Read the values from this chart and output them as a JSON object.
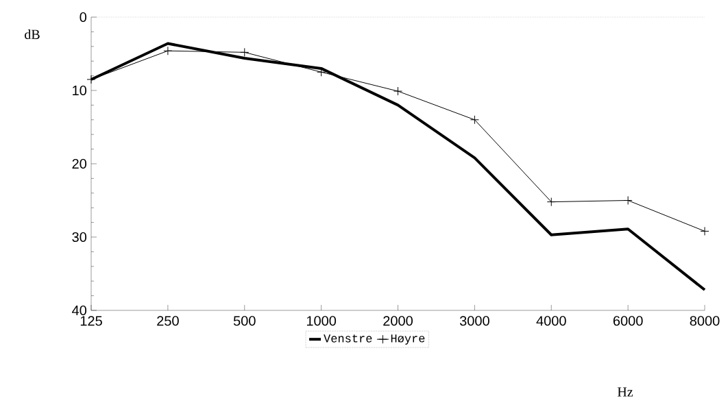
{
  "chart_data": {
    "type": "line",
    "xlabel": "Hz",
    "ylabel": "dB",
    "categories": [
      "125",
      "250",
      "500",
      "1000",
      "2000",
      "3000",
      "4000",
      "6000",
      "8000"
    ],
    "series": [
      {
        "name": "Venstre",
        "color": "#000000",
        "marker": "none",
        "values": [
          8.5,
          3.6,
          5.6,
          7,
          12,
          19.2,
          29.7,
          28.9,
          37.2
        ]
      },
      {
        "name": "Høyre",
        "color": "#000000",
        "marker": "cross",
        "values": [
          8.5,
          4.6,
          4.8,
          7.5,
          10.1,
          14,
          25.2,
          25,
          29.2
        ]
      }
    ],
    "ylim": [
      40,
      0
    ],
    "yticks": [
      0,
      10,
      20,
      30,
      40
    ],
    "legend": "bottom",
    "grid": false
  }
}
